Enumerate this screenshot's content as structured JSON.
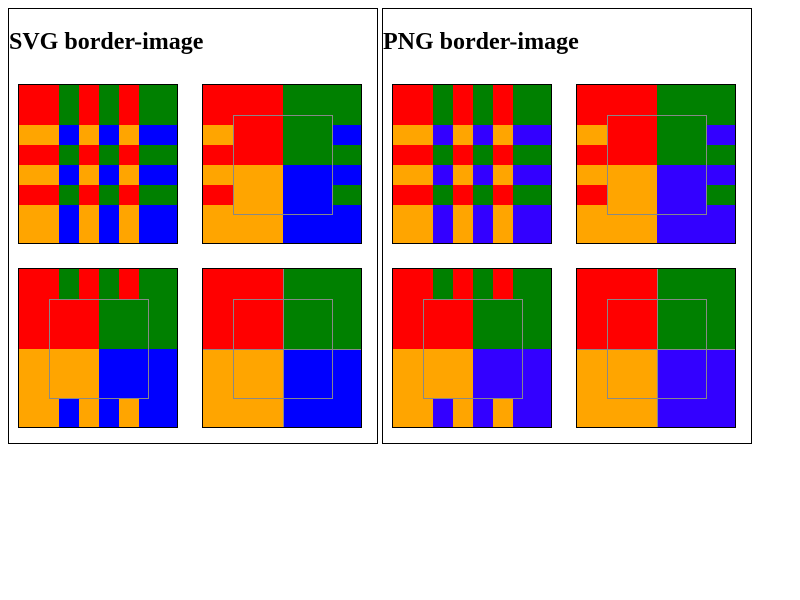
{
  "panels": [
    {
      "id": "svg",
      "title": "SVG border-image"
    },
    {
      "id": "png",
      "title": "PNG border-image"
    }
  ],
  "colors": {
    "red": "#ff0000",
    "green": "#008000",
    "orange": "#ffa500",
    "blue_svg": "#0000ff",
    "blue_png": "#3300ff",
    "seam": "#888888"
  }
}
